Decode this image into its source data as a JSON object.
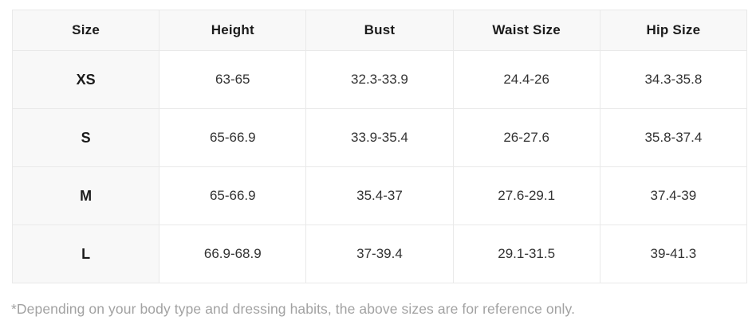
{
  "table": {
    "columns": [
      "Size",
      "Height",
      "Bust",
      "Waist Size",
      "Hip Size"
    ],
    "rows": [
      [
        "XS",
        "63-65",
        "32.3-33.9",
        "24.4-26",
        "34.3-35.8"
      ],
      [
        "S",
        "65-66.9",
        "33.9-35.4",
        "26-27.6",
        "35.8-37.4"
      ],
      [
        "M",
        "65-66.9",
        "35.4-37",
        "27.6-29.1",
        "37.4-39"
      ],
      [
        "L",
        "66.9-68.9",
        "37-39.4",
        "29.1-31.5",
        "39-41.3"
      ]
    ]
  },
  "footnote": "*Depending on your body type and dressing habits, the above sizes are for reference only.",
  "colors": {
    "header_bg": "#f8f8f8",
    "size_column_bg": "#f8f8f8",
    "border": "#e9e9e9",
    "header_text": "#1b1b1b",
    "cell_text": "#333333",
    "footnote_text": "#a2a2a2"
  }
}
